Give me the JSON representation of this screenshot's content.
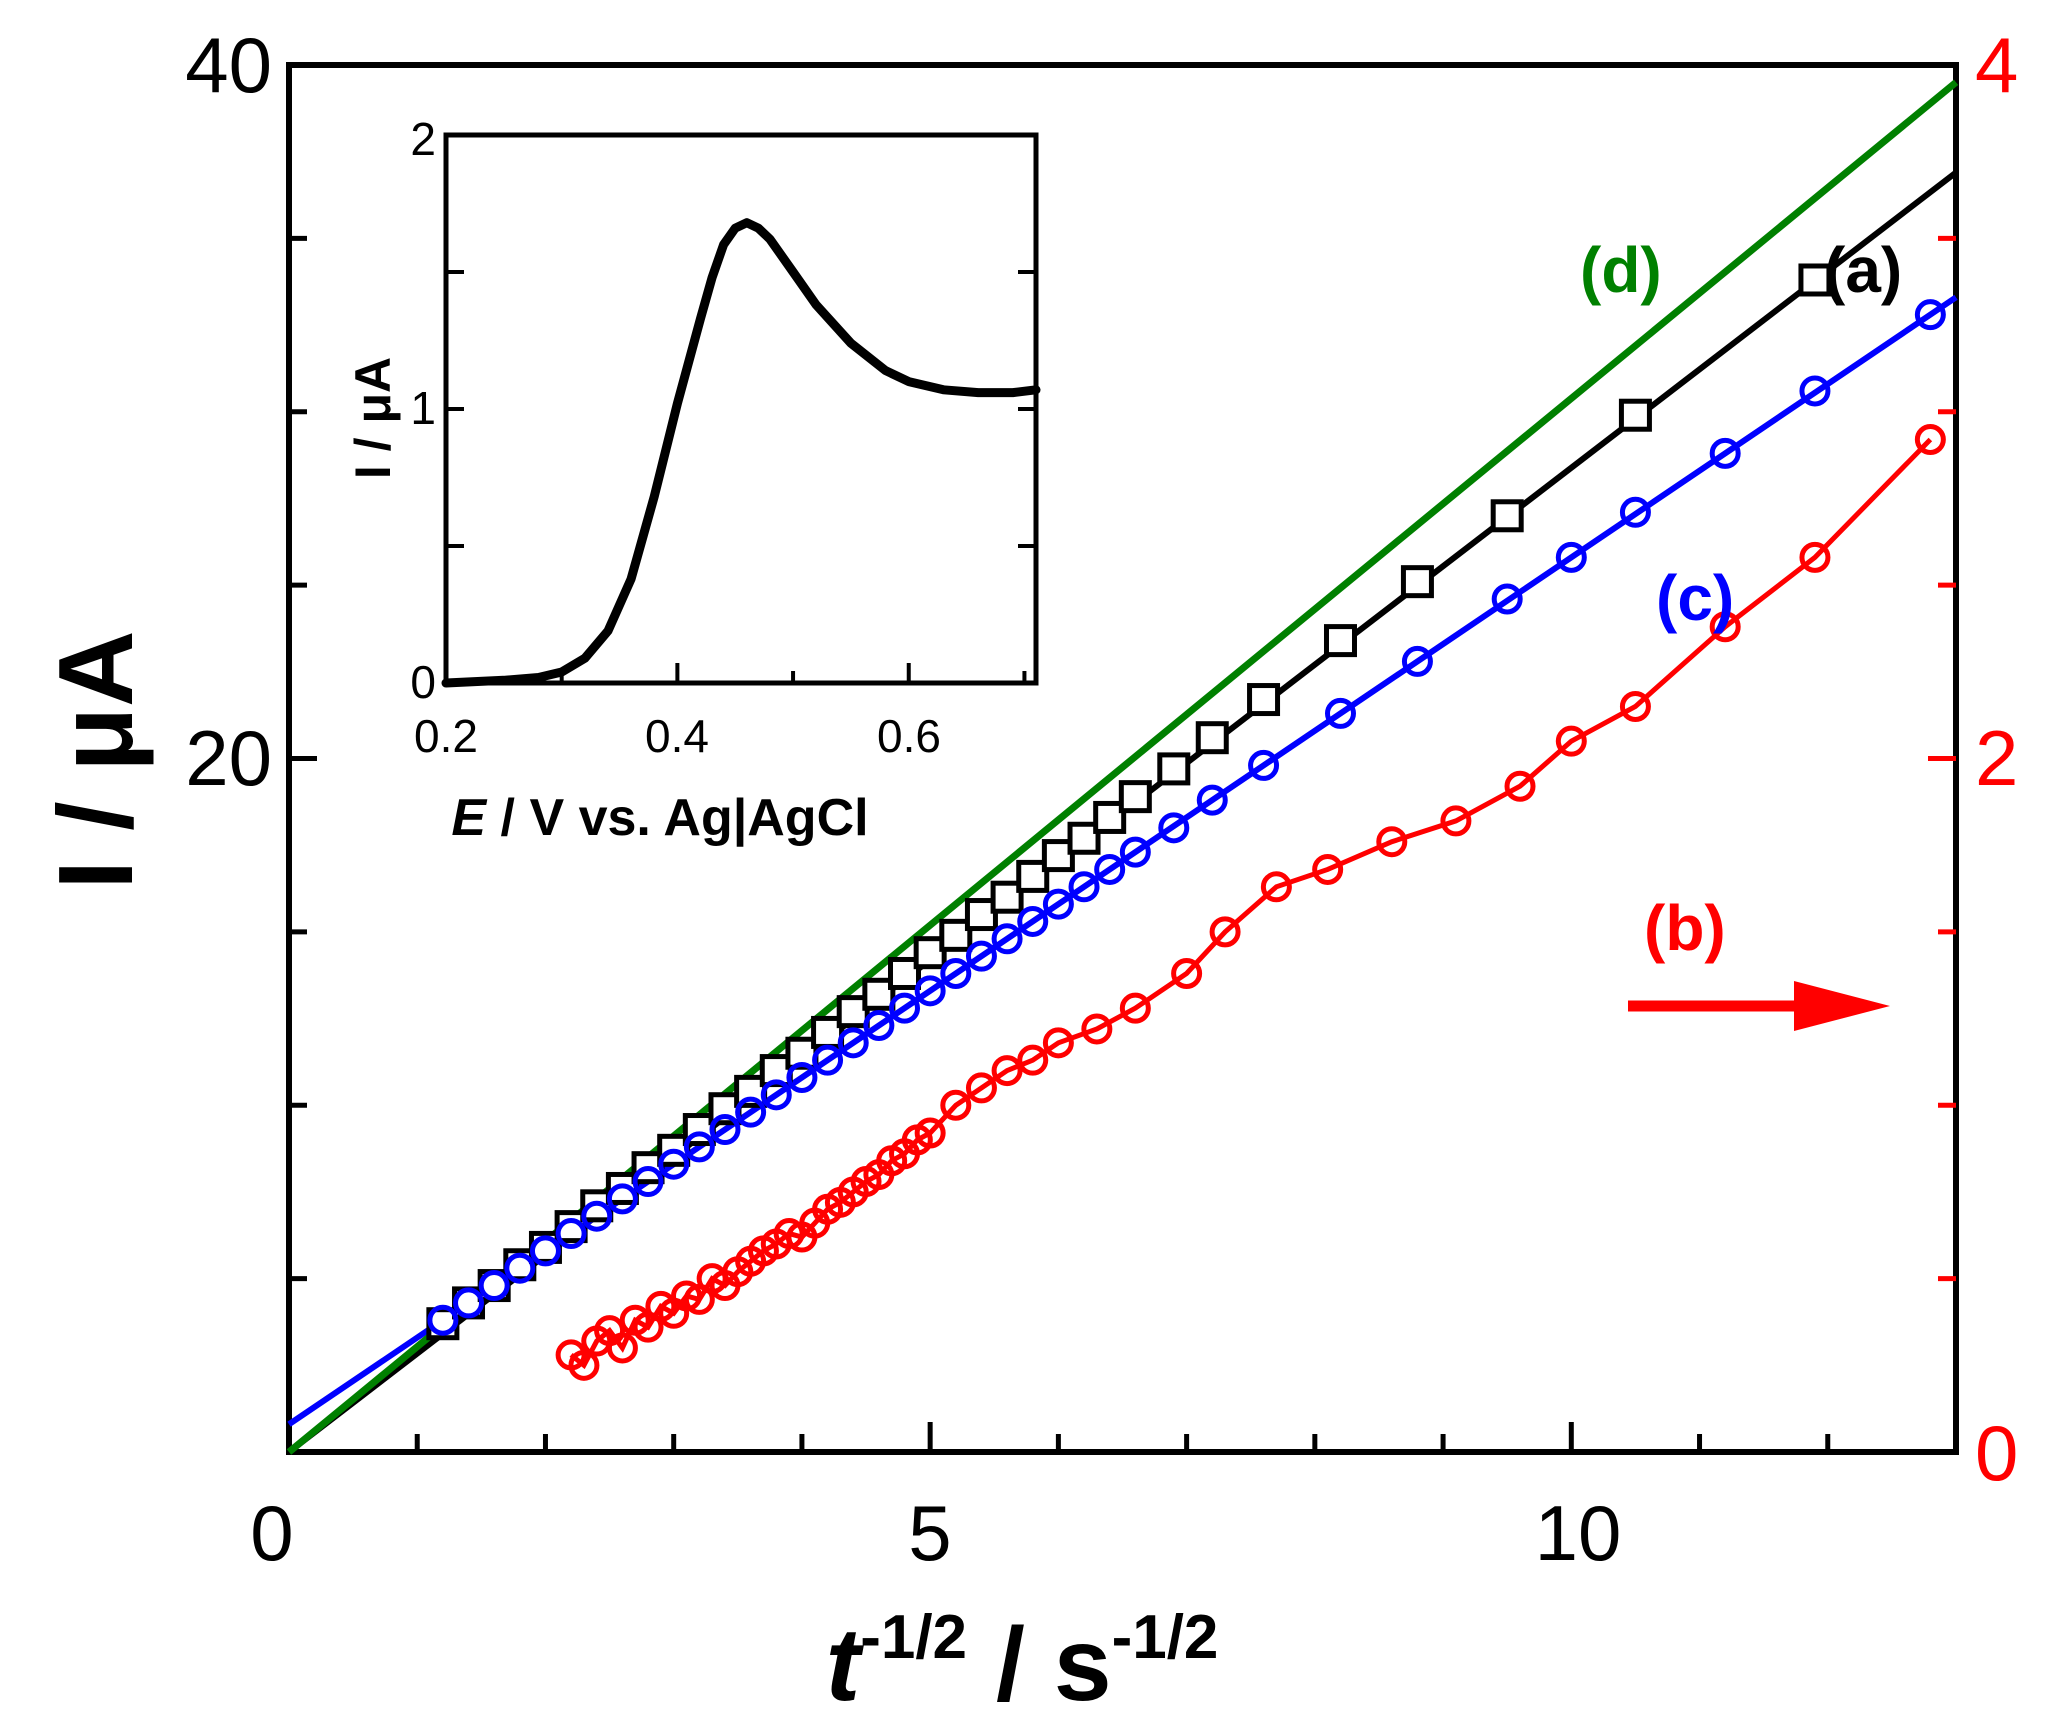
{
  "chart_data": [
    {
      "type": "scatter",
      "title": "",
      "xlabel": "t-1/2 / s-1/2",
      "ylabel": "I / μA",
      "y2label": "",
      "xlim": [
        0,
        13
      ],
      "ylim": [
        0,
        40
      ],
      "y2lim": [
        0,
        4
      ],
      "x_ticks": [
        0,
        5,
        10
      ],
      "y_ticks": [
        20,
        40
      ],
      "y2_ticks": [
        0,
        2,
        4
      ],
      "colors": {
        "a": "#000000",
        "b": "#ff0000",
        "c": "#0000ff",
        "d": "#008000",
        "right_axis": "#ff0000"
      },
      "annotations": [
        {
          "text": "→",
          "color": "#ff0000",
          "meaning": "series (b) plotted on right axis"
        }
      ],
      "series": [
        {
          "name": "(a)",
          "color": "#000000",
          "marker": "square",
          "axis": "left",
          "x": [
            1.2,
            1.4,
            1.6,
            1.8,
            2.0,
            2.2,
            2.4,
            2.6,
            2.8,
            3.0,
            3.2,
            3.4,
            3.6,
            3.8,
            4.0,
            4.2,
            4.4,
            4.6,
            4.8,
            5.0,
            5.2,
            5.4,
            5.6,
            5.8,
            6.0,
            6.2,
            6.4,
            6.6,
            6.9,
            7.2,
            7.6,
            8.2,
            8.8,
            9.5,
            10.5,
            11.9
          ],
          "y": [
            3.7,
            4.3,
            4.8,
            5.4,
            5.9,
            6.5,
            7.1,
            7.6,
            8.2,
            8.7,
            9.3,
            9.9,
            10.4,
            11.0,
            11.5,
            12.1,
            12.7,
            13.2,
            13.8,
            14.4,
            14.9,
            15.5,
            16.0,
            16.6,
            17.2,
            17.7,
            18.3,
            18.9,
            19.7,
            20.6,
            21.7,
            23.4,
            25.1,
            27.0,
            29.9,
            33.8
          ],
          "fit": {
            "x": [
              0,
              13
            ],
            "y": [
              0,
              36.9
            ]
          }
        },
        {
          "name": "(b)",
          "color": "#ff0000",
          "marker": "circle",
          "axis": "right",
          "x": [
            2.2,
            2.3,
            2.4,
            2.5,
            2.6,
            2.7,
            2.8,
            2.9,
            3.0,
            3.1,
            3.2,
            3.3,
            3.4,
            3.5,
            3.6,
            3.7,
            3.8,
            3.9,
            4.0,
            4.1,
            4.2,
            4.3,
            4.4,
            4.5,
            4.6,
            4.7,
            4.8,
            4.9,
            5.0,
            5.2,
            5.4,
            5.6,
            5.8,
            6.0,
            6.3,
            6.6,
            7.0,
            7.3,
            7.7,
            8.1,
            8.6,
            9.1,
            9.6,
            10.0,
            10.5,
            11.2,
            11.9,
            12.8
          ],
          "y": [
            0.28,
            0.25,
            0.32,
            0.35,
            0.3,
            0.38,
            0.36,
            0.42,
            0.4,
            0.45,
            0.44,
            0.5,
            0.48,
            0.52,
            0.55,
            0.58,
            0.6,
            0.63,
            0.62,
            0.66,
            0.7,
            0.72,
            0.75,
            0.78,
            0.8,
            0.84,
            0.86,
            0.9,
            0.92,
            1.0,
            1.05,
            1.1,
            1.13,
            1.18,
            1.22,
            1.28,
            1.38,
            1.5,
            1.63,
            1.68,
            1.76,
            1.82,
            1.92,
            2.05,
            2.15,
            2.38,
            2.58,
            2.92
          ]
        },
        {
          "name": "(c)",
          "color": "#0000ff",
          "marker": "circle",
          "axis": "left",
          "x": [
            1.2,
            1.4,
            1.6,
            1.8,
            2.0,
            2.2,
            2.4,
            2.6,
            2.8,
            3.0,
            3.2,
            3.4,
            3.6,
            3.8,
            4.0,
            4.2,
            4.4,
            4.6,
            4.8,
            5.0,
            5.2,
            5.4,
            5.6,
            5.8,
            6.0,
            6.2,
            6.4,
            6.6,
            6.9,
            7.2,
            7.6,
            8.2,
            8.8,
            9.5,
            10.0,
            10.5,
            11.2,
            11.9,
            12.8
          ],
          "y": [
            3.8,
            4.3,
            4.8,
            5.3,
            5.8,
            6.3,
            6.8,
            7.3,
            7.8,
            8.3,
            8.8,
            9.3,
            9.8,
            10.3,
            10.8,
            11.3,
            11.8,
            12.3,
            12.8,
            13.3,
            13.8,
            14.3,
            14.8,
            15.3,
            15.8,
            16.3,
            16.8,
            17.3,
            18.0,
            18.8,
            19.8,
            21.3,
            22.8,
            24.6,
            25.8,
            27.1,
            28.8,
            30.6,
            32.8
          ],
          "fit": {
            "x": [
              0,
              13
            ],
            "y": [
              0.8,
              33.3
            ]
          }
        },
        {
          "name": "(d)",
          "color": "#008000",
          "marker": "line",
          "axis": "left",
          "x": [
            0,
            13
          ],
          "y": [
            0,
            39.5
          ]
        }
      ],
      "inset": {
        "type": "line",
        "xlabel": "E / V vs. Ag|AgCl",
        "ylabel": "I / μA",
        "xlim": [
          0.2,
          0.71
        ],
        "ylim": [
          0,
          2
        ],
        "x_ticks": [
          0.2,
          0.4,
          0.6
        ],
        "y_ticks": [
          0,
          1,
          2
        ],
        "series": [
          {
            "name": "voltammogram",
            "color": "#000000",
            "x": [
              0.2,
              0.25,
              0.28,
              0.3,
              0.32,
              0.34,
              0.36,
              0.38,
              0.4,
              0.42,
              0.43,
              0.44,
              0.45,
              0.46,
              0.47,
              0.48,
              0.5,
              0.52,
              0.55,
              0.58,
              0.6,
              0.63,
              0.66,
              0.69,
              0.71
            ],
            "y": [
              0.0,
              0.01,
              0.02,
              0.04,
              0.09,
              0.19,
              0.38,
              0.68,
              1.02,
              1.33,
              1.48,
              1.6,
              1.66,
              1.68,
              1.66,
              1.62,
              1.5,
              1.38,
              1.24,
              1.14,
              1.1,
              1.07,
              1.06,
              1.06,
              1.07
            ]
          }
        ]
      }
    }
  ],
  "labels": {
    "y_left_title": "I / μA",
    "x_title_base": "t",
    "x_title_exp": "-1/2",
    "x_title_mid": " / s",
    "x_title_exp2": "-1/2",
    "inset_x_title_italic": "E",
    "inset_x_title_rest": " / V vs. Ag|AgCl",
    "inset_y_title": "I / μA",
    "series_a": "(a)",
    "series_b": "(b)",
    "series_c": "(c)",
    "series_d": "(d)",
    "x_tick_0": "0",
    "x_tick_5": "5",
    "x_tick_10": "10",
    "y_tick_20": "20",
    "y_tick_40": "40",
    "y2_tick_0": "0",
    "y2_tick_2": "2",
    "y2_tick_4": "4",
    "inset_x_tick_02": "0.2",
    "inset_x_tick_04": "0.4",
    "inset_x_tick_06": "0.6",
    "inset_y_tick_0": "0",
    "inset_y_tick_1": "1",
    "inset_y_tick_2": "2"
  }
}
